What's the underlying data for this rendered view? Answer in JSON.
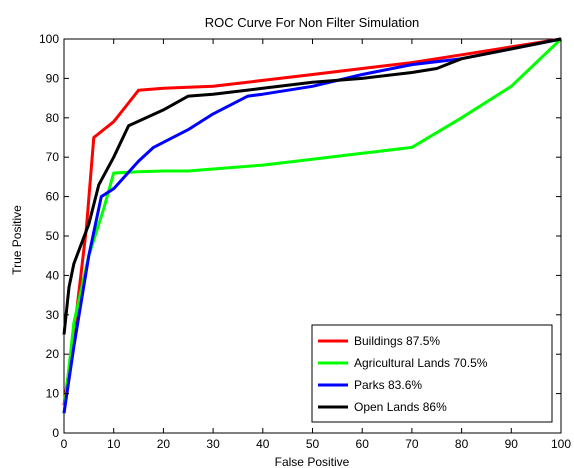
{
  "chart_data": {
    "type": "line",
    "title": "ROC Curve For Non Filter Simulation",
    "xlabel": "False Positive",
    "ylabel": "True Positive",
    "xlim": [
      0,
      100
    ],
    "ylim": [
      0,
      100
    ],
    "xticks": [
      0,
      10,
      20,
      30,
      40,
      50,
      60,
      70,
      80,
      90,
      100
    ],
    "yticks": [
      0,
      10,
      20,
      30,
      40,
      50,
      60,
      70,
      80,
      90,
      100
    ],
    "grid": false,
    "legend_position": "bottom-right",
    "series": [
      {
        "name": "Buildings 87.5%",
        "color": "#ff0000",
        "x": [
          0,
          2,
          4.5,
          6,
          10,
          15,
          20,
          30,
          40,
          50,
          60,
          70,
          80,
          90,
          100
        ],
        "y": [
          7,
          25,
          52,
          75,
          79,
          87,
          87.5,
          88,
          89.5,
          91,
          92.5,
          94,
          96,
          98,
          100
        ]
      },
      {
        "name": "Agricultural Lands 70.5%",
        "color": "#00ff00",
        "x": [
          0,
          2,
          5,
          8,
          10,
          15,
          20,
          25,
          30,
          40,
          50,
          60,
          70,
          80,
          90,
          100
        ],
        "y": [
          5,
          28,
          45,
          57,
          66,
          66.3,
          66.5,
          66.5,
          67,
          68,
          69.5,
          71,
          72.5,
          80,
          88,
          100
        ]
      },
      {
        "name": "Parks 83.6%",
        "color": "#0000ff",
        "x": [
          0,
          2,
          5,
          7.5,
          10,
          15,
          18,
          25,
          30,
          37,
          40,
          50,
          60,
          70,
          80,
          90,
          100
        ],
        "y": [
          5,
          22,
          45,
          60,
          62,
          69,
          72.5,
          77,
          81,
          85.5,
          86,
          88,
          91,
          93.5,
          95,
          97.5,
          100
        ]
      },
      {
        "name": "Open Lands 86%",
        "color": "#000000",
        "x": [
          0,
          1,
          2,
          5,
          7,
          10,
          13,
          20,
          25,
          30,
          40,
          50,
          60,
          70,
          75,
          80,
          90,
          100
        ],
        "y": [
          25,
          37,
          43,
          53,
          63,
          70,
          78,
          82,
          85.5,
          86,
          87.5,
          89,
          90,
          91.5,
          92.5,
          95,
          97.5,
          100
        ]
      }
    ]
  }
}
